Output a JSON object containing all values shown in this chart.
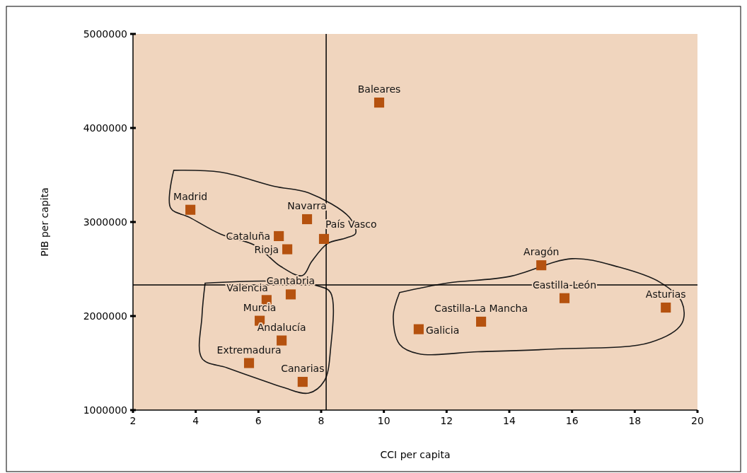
{
  "chart_data": {
    "type": "scatter",
    "xlabel": "CCI per capita",
    "ylabel": "PIB per capita",
    "x": [
      9.85,
      3.83,
      7.55,
      6.65,
      8.09,
      6.92,
      15.02,
      6.26,
      7.03,
      15.76,
      18.99,
      6.04,
      13.1,
      11.11,
      6.74,
      5.7,
      7.41
    ],
    "series": [
      {
        "color": "#b5520f",
        "values": [
          4270000,
          3130000,
          3030000,
          2850000,
          2820000,
          2710000,
          2540000,
          2170000,
          2230000,
          2190000,
          2090000,
          1950000,
          1940000,
          1860000,
          1740000,
          1500000,
          1300000
        ]
      }
    ],
    "marker": "square",
    "xlim": [
      2,
      20
    ],
    "xticks": [
      2,
      4,
      6,
      8,
      10,
      12,
      14,
      16,
      18,
      20
    ],
    "ylim": [
      1000000,
      5000000
    ],
    "yticks": [
      1000000,
      2000000,
      3000000,
      4000000,
      5000000
    ],
    "ref_lines": [
      {
        "axis": "x",
        "value": 8.16,
        "color": "#000000"
      },
      {
        "axis": "y",
        "value": 2330000,
        "color": "#000000"
      }
    ],
    "annotations": [
      {
        "text": "Baleares",
        "x": 9.85,
        "y": 4270000
      },
      {
        "text": "Madrid",
        "x": 3.83,
        "y": 3130000
      },
      {
        "text": "Navarra",
        "x": 7.55,
        "y": 3030000
      },
      {
        "text": "Cataluña",
        "x": 6.65,
        "y": 2850000
      },
      {
        "text": "País Vasco",
        "x": 8.09,
        "y": 2820000
      },
      {
        "text": "Rioja",
        "x": 6.92,
        "y": 2710000
      },
      {
        "text": "Aragón",
        "x": 15.02,
        "y": 2540000
      },
      {
        "text": "Valencia",
        "x": 6.26,
        "y": 2170000
      },
      {
        "text": "Cantabria",
        "x": 7.03,
        "y": 2230000
      },
      {
        "text": "Castilla-León",
        "x": 15.76,
        "y": 2190000
      },
      {
        "text": "Asturias",
        "x": 18.99,
        "y": 2090000
      },
      {
        "text": "Murcia",
        "x": 6.04,
        "y": 1950000
      },
      {
        "text": "Castilla-La Mancha",
        "x": 13.1,
        "y": 1940000
      },
      {
        "text": "Galicia",
        "x": 11.11,
        "y": 1860000
      },
      {
        "text": "Andalucía",
        "x": 6.74,
        "y": 1740000
      },
      {
        "text": "Extremadura",
        "x": 5.7,
        "y": 1500000
      },
      {
        "text": "Canarias",
        "x": 7.41,
        "y": 1300000
      }
    ],
    "grid": false
  }
}
